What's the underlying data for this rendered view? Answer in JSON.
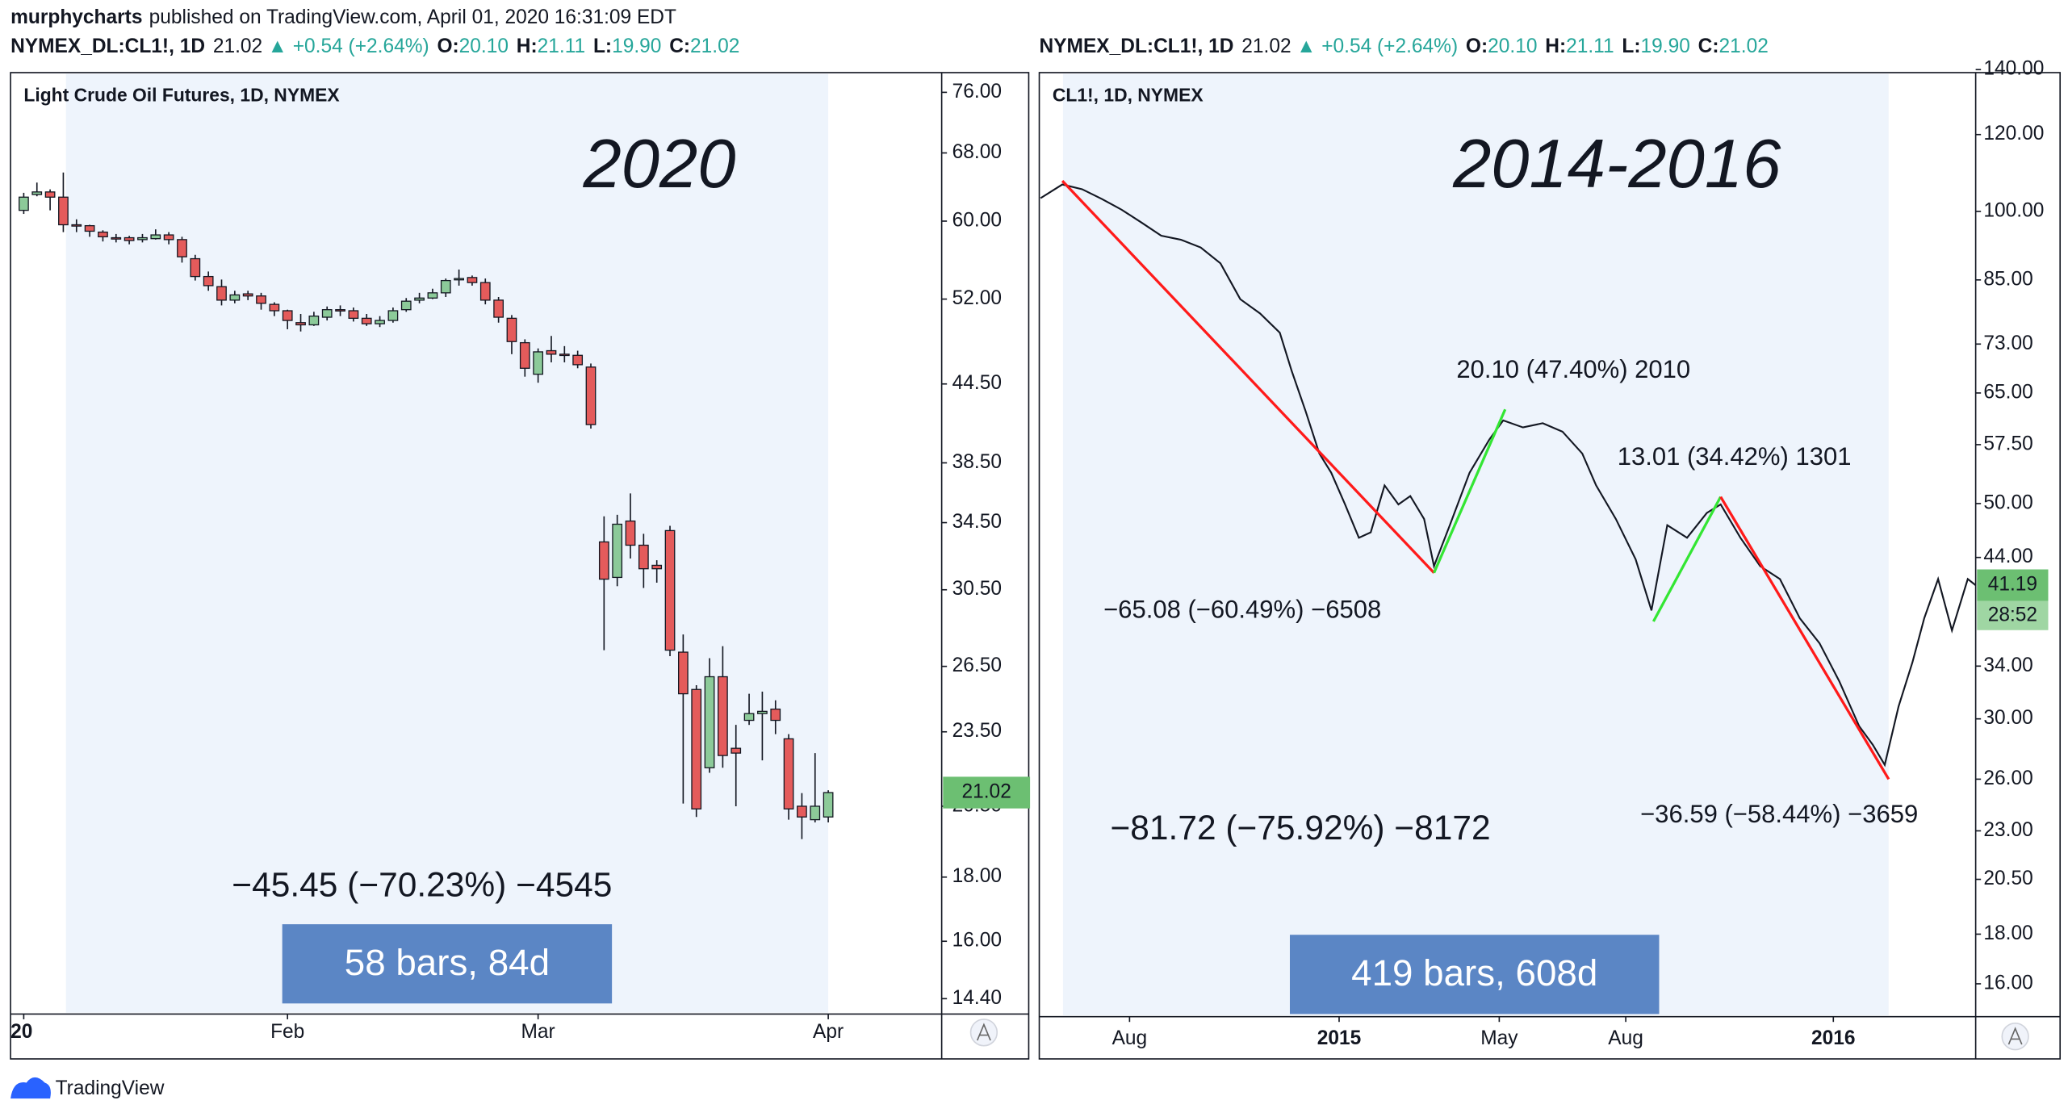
{
  "header": {
    "author": "murphycharts",
    "published": "published on TradingView.com, April 01, 2020 16:31:09 EDT"
  },
  "footer": {
    "brand": "TradingView"
  },
  "chart_data": [
    {
      "type": "candlestick",
      "symbol": "NYMEX_DL:CL1!, 1D",
      "last": "21.02",
      "change": "▲ +0.54 (+2.64%)",
      "quote_labels": [
        "O:",
        "H:",
        "L:",
        "C:"
      ],
      "quote_values": [
        "20.10",
        "21.11",
        "19.90",
        "21.02"
      ],
      "title": "Light Crude Oil Futures, 1D, NYMEX",
      "annotation": "2020",
      "open": [
        61.2,
        63.0,
        63.3,
        62.7,
        59.6,
        59.5,
        58.8,
        58.2,
        58.2,
        58.0,
        58.1,
        58.5,
        58.0,
        56.0,
        54.2,
        53.2,
        51.9,
        52.5,
        52.3,
        51.5,
        50.9,
        49.8,
        49.6,
        50.3,
        51.0,
        50.9,
        50.2,
        49.7,
        50.0,
        51.0,
        51.9,
        52.1,
        52.6,
        53.9,
        54.1,
        53.6,
        51.9,
        50.2,
        48.0,
        45.3,
        47.3,
        47.0,
        46.9,
        45.9,
        33.3,
        31.2,
        34.6,
        33.1,
        31.9,
        34.0,
        27.2,
        25.4,
        22.0,
        26.0,
        22.8,
        24.0,
        24.3,
        24.5,
        23.2,
        20.5,
        20.0,
        20.1
      ],
      "high": [
        63.2,
        64.4,
        63.6,
        65.6,
        60.2,
        59.6,
        59.0,
        58.6,
        58.4,
        58.6,
        59.1,
        58.8,
        58.3,
        56.4,
        54.7,
        53.9,
        52.8,
        52.8,
        52.6,
        51.7,
        51.0,
        50.6,
        50.8,
        51.3,
        51.4,
        51.2,
        50.6,
        50.4,
        51.2,
        52.1,
        52.6,
        53.0,
        54.0,
        54.9,
        54.3,
        54.0,
        52.2,
        50.5,
        48.3,
        47.5,
        48.6,
        47.7,
        47.3,
        46.2,
        34.9,
        35.0,
        36.4,
        33.8,
        32.2,
        34.3,
        28.1,
        25.6,
        26.9,
        27.5,
        23.8,
        25.2,
        25.3,
        24.9,
        23.4,
        21.0,
        22.6,
        21.11
      ],
      "low": [
        60.8,
        62.8,
        61.2,
        58.8,
        58.8,
        58.3,
        57.8,
        57.7,
        57.5,
        57.7,
        58.0,
        57.5,
        55.6,
        53.8,
        52.8,
        51.4,
        51.6,
        51.9,
        51.0,
        50.4,
        49.2,
        49.0,
        49.5,
        50.0,
        50.4,
        49.9,
        49.5,
        49.4,
        49.8,
        50.8,
        51.6,
        52.0,
        52.2,
        53.3,
        53.3,
        51.5,
        49.8,
        47.0,
        45.1,
        44.6,
        46.3,
        46.3,
        45.8,
        41.0,
        27.3,
        30.7,
        32.3,
        30.6,
        30.9,
        27.0,
        20.6,
        20.1,
        21.8,
        22.0,
        20.5,
        23.8,
        22.3,
        23.4,
        20.0,
        19.3,
        19.9,
        19.9
      ],
      "close": [
        62.7,
        63.3,
        62.7,
        59.6,
        59.5,
        58.9,
        58.3,
        58.1,
        57.9,
        58.2,
        58.5,
        58.0,
        56.2,
        54.2,
        53.3,
        51.9,
        52.4,
        52.3,
        51.6,
        50.9,
        50.0,
        49.6,
        50.4,
        51.0,
        50.9,
        50.2,
        49.7,
        50.0,
        50.9,
        51.8,
        52.1,
        52.6,
        53.8,
        54.0,
        53.6,
        51.9,
        50.3,
        48.1,
        45.8,
        47.2,
        47.0,
        46.9,
        46.1,
        41.3,
        31.1,
        34.4,
        33.1,
        31.7,
        31.7,
        27.3,
        25.2,
        20.4,
        26.0,
        22.5,
        22.6,
        24.3,
        24.4,
        24.0,
        20.4,
        20.1,
        20.5,
        21.02
      ],
      "up_color": "#8cca99",
      "down_color": "#e45b5b",
      "xlim": [
        -1,
        69.6
      ],
      "xticks": [
        {
          "value": 0,
          "label": "20"
        },
        {
          "value": 20,
          "label": "Feb"
        },
        {
          "value": 39,
          "label": "Mar"
        },
        {
          "value": 61,
          "label": "Apr"
        }
      ],
      "log_scale": true,
      "ylim": [
        14,
        78.8
      ],
      "yticks": [
        {
          "value": 76,
          "label": "76.00"
        },
        {
          "value": 68,
          "label": "68.00"
        },
        {
          "value": 60,
          "label": "60.00"
        },
        {
          "value": 52,
          "label": "52.00"
        },
        {
          "value": 44.5,
          "label": "44.50"
        },
        {
          "value": 38.5,
          "label": "38.50"
        },
        {
          "value": 34.5,
          "label": "34.50"
        },
        {
          "value": 30.5,
          "label": "30.50"
        },
        {
          "value": 26.5,
          "label": "26.50"
        },
        {
          "value": 23.5,
          "label": "23.50"
        },
        {
          "value": 20.5,
          "label": "20.50"
        },
        {
          "value": 18,
          "label": "18.00"
        },
        {
          "value": 16,
          "label": "16.00"
        },
        {
          "value": 14.4,
          "label": "14.40"
        }
      ],
      "last_price": {
        "value": 21.02,
        "label": "21.02",
        "color": "#6cbf72"
      },
      "measure": {
        "change": "−45.45 (−70.23%) −4545",
        "bars": "58 bars, 84d"
      }
    },
    {
      "type": "line",
      "symbol": "NYMEX_DL:CL1!, 1D",
      "last": "21.02",
      "change": "▲ +0.54 (+2.64%)",
      "quote_labels": [
        "O:",
        "H:",
        "L:",
        "C:"
      ],
      "quote_values": [
        "20.10",
        "21.11",
        "19.90",
        "21.02"
      ],
      "title": "CL1!, 1D, NYMEX",
      "annotation": "2014-2016",
      "x": [
        0,
        11,
        21,
        31,
        41,
        51,
        61,
        71,
        81,
        91,
        101,
        111,
        121,
        127,
        134,
        141,
        147,
        154,
        161,
        167,
        174,
        181,
        187,
        194,
        199,
        207,
        217,
        227,
        234,
        244,
        254,
        264,
        274,
        281,
        291,
        301,
        309,
        317,
        327,
        337,
        344,
        354,
        364,
        374,
        384,
        394,
        404,
        414,
        421,
        427,
        434,
        441,
        447,
        454,
        461,
        469,
        473
      ],
      "series": [
        {
          "name": "CL1!",
          "color": "#131722",
          "values": [
            103.2,
            106.6,
            105.4,
            103,
            100.4,
            97.4,
            94.4,
            93.5,
            91.8,
            88.4,
            81.2,
            78.5,
            75,
            68.5,
            62.3,
            56.3,
            53.8,
            49.9,
            46.1,
            46.7,
            52.2,
            49.9,
            50.9,
            48.2,
            43.1,
            47.5,
            53.8,
            58.2,
            60.9,
            59.9,
            60.5,
            59.3,
            56.3,
            52.2,
            48.2,
            43.8,
            38.8,
            47.5,
            46.1,
            48.9,
            49.9,
            46.1,
            43.1,
            41.8,
            38.1,
            35.9,
            32.8,
            29.5,
            28.2,
            26.9,
            30.9,
            34.3,
            38.1,
            41.8,
            37.0,
            41.8,
            41.19
          ]
        }
      ],
      "xlim": [
        0,
        473
      ],
      "xticks": [
        {
          "value": 45,
          "label": "Aug"
        },
        {
          "value": 151,
          "label": "2015"
        },
        {
          "value": 232,
          "label": "May"
        },
        {
          "value": 296,
          "label": "Aug"
        },
        {
          "value": 401,
          "label": "2016"
        }
      ],
      "log_scale": true,
      "ylim": [
        14.8,
        139
      ],
      "yticks": [
        {
          "value": 140,
          "label": "140.00"
        },
        {
          "value": 120,
          "label": "120.00"
        },
        {
          "value": 100,
          "label": "100.00"
        },
        {
          "value": 85,
          "label": "85.00"
        },
        {
          "value": 73,
          "label": "73.00"
        },
        {
          "value": 65,
          "label": "65.00"
        },
        {
          "value": 57.5,
          "label": "57.50"
        },
        {
          "value": 50,
          "label": "50.00"
        },
        {
          "value": 44,
          "label": "44.00"
        },
        {
          "value": 34,
          "label": "34.00"
        },
        {
          "value": 30,
          "label": "30.00"
        },
        {
          "value": 26,
          "label": "26.00"
        },
        {
          "value": 23,
          "label": "23.00"
        },
        {
          "value": 20.5,
          "label": "20.50"
        },
        {
          "value": 18,
          "label": "18.00"
        },
        {
          "value": 16,
          "label": "16.00"
        }
      ],
      "last_price": {
        "value": 41.19,
        "label": "41.19",
        "color": "#6cbf72",
        "countdown": "28:52"
      },
      "trend_lines": [
        {
          "color": "#ff1a1a",
          "x": [
            11,
            199
          ],
          "y": [
            107.5,
            42.42
          ]
        },
        {
          "color": "#33e633",
          "x": [
            199,
            235
          ],
          "y": [
            42.42,
            62.52
          ]
        },
        {
          "color": "#33e633",
          "x": [
            310,
            344
          ],
          "y": [
            37.8,
            50.81
          ]
        },
        {
          "color": "#ff1a1a",
          "x": [
            344,
            429
          ],
          "y": [
            50.81,
            26.0
          ]
        }
      ],
      "annotations": [
        {
          "text": "20.10 (47.40%) 2010",
          "color": "#1fa31f"
        },
        {
          "text": "13.01 (34.42%) 1301",
          "color": "#1fa31f"
        },
        {
          "text": "−65.08 (−60.49%) −6508",
          "color": "#e84545"
        },
        {
          "text": "−36.59 (−58.44%) −3659",
          "color": "#e84545"
        }
      ],
      "measure": {
        "change": "−81.72 (−75.92%) −8172",
        "bars": "419 bars, 608d"
      }
    }
  ]
}
